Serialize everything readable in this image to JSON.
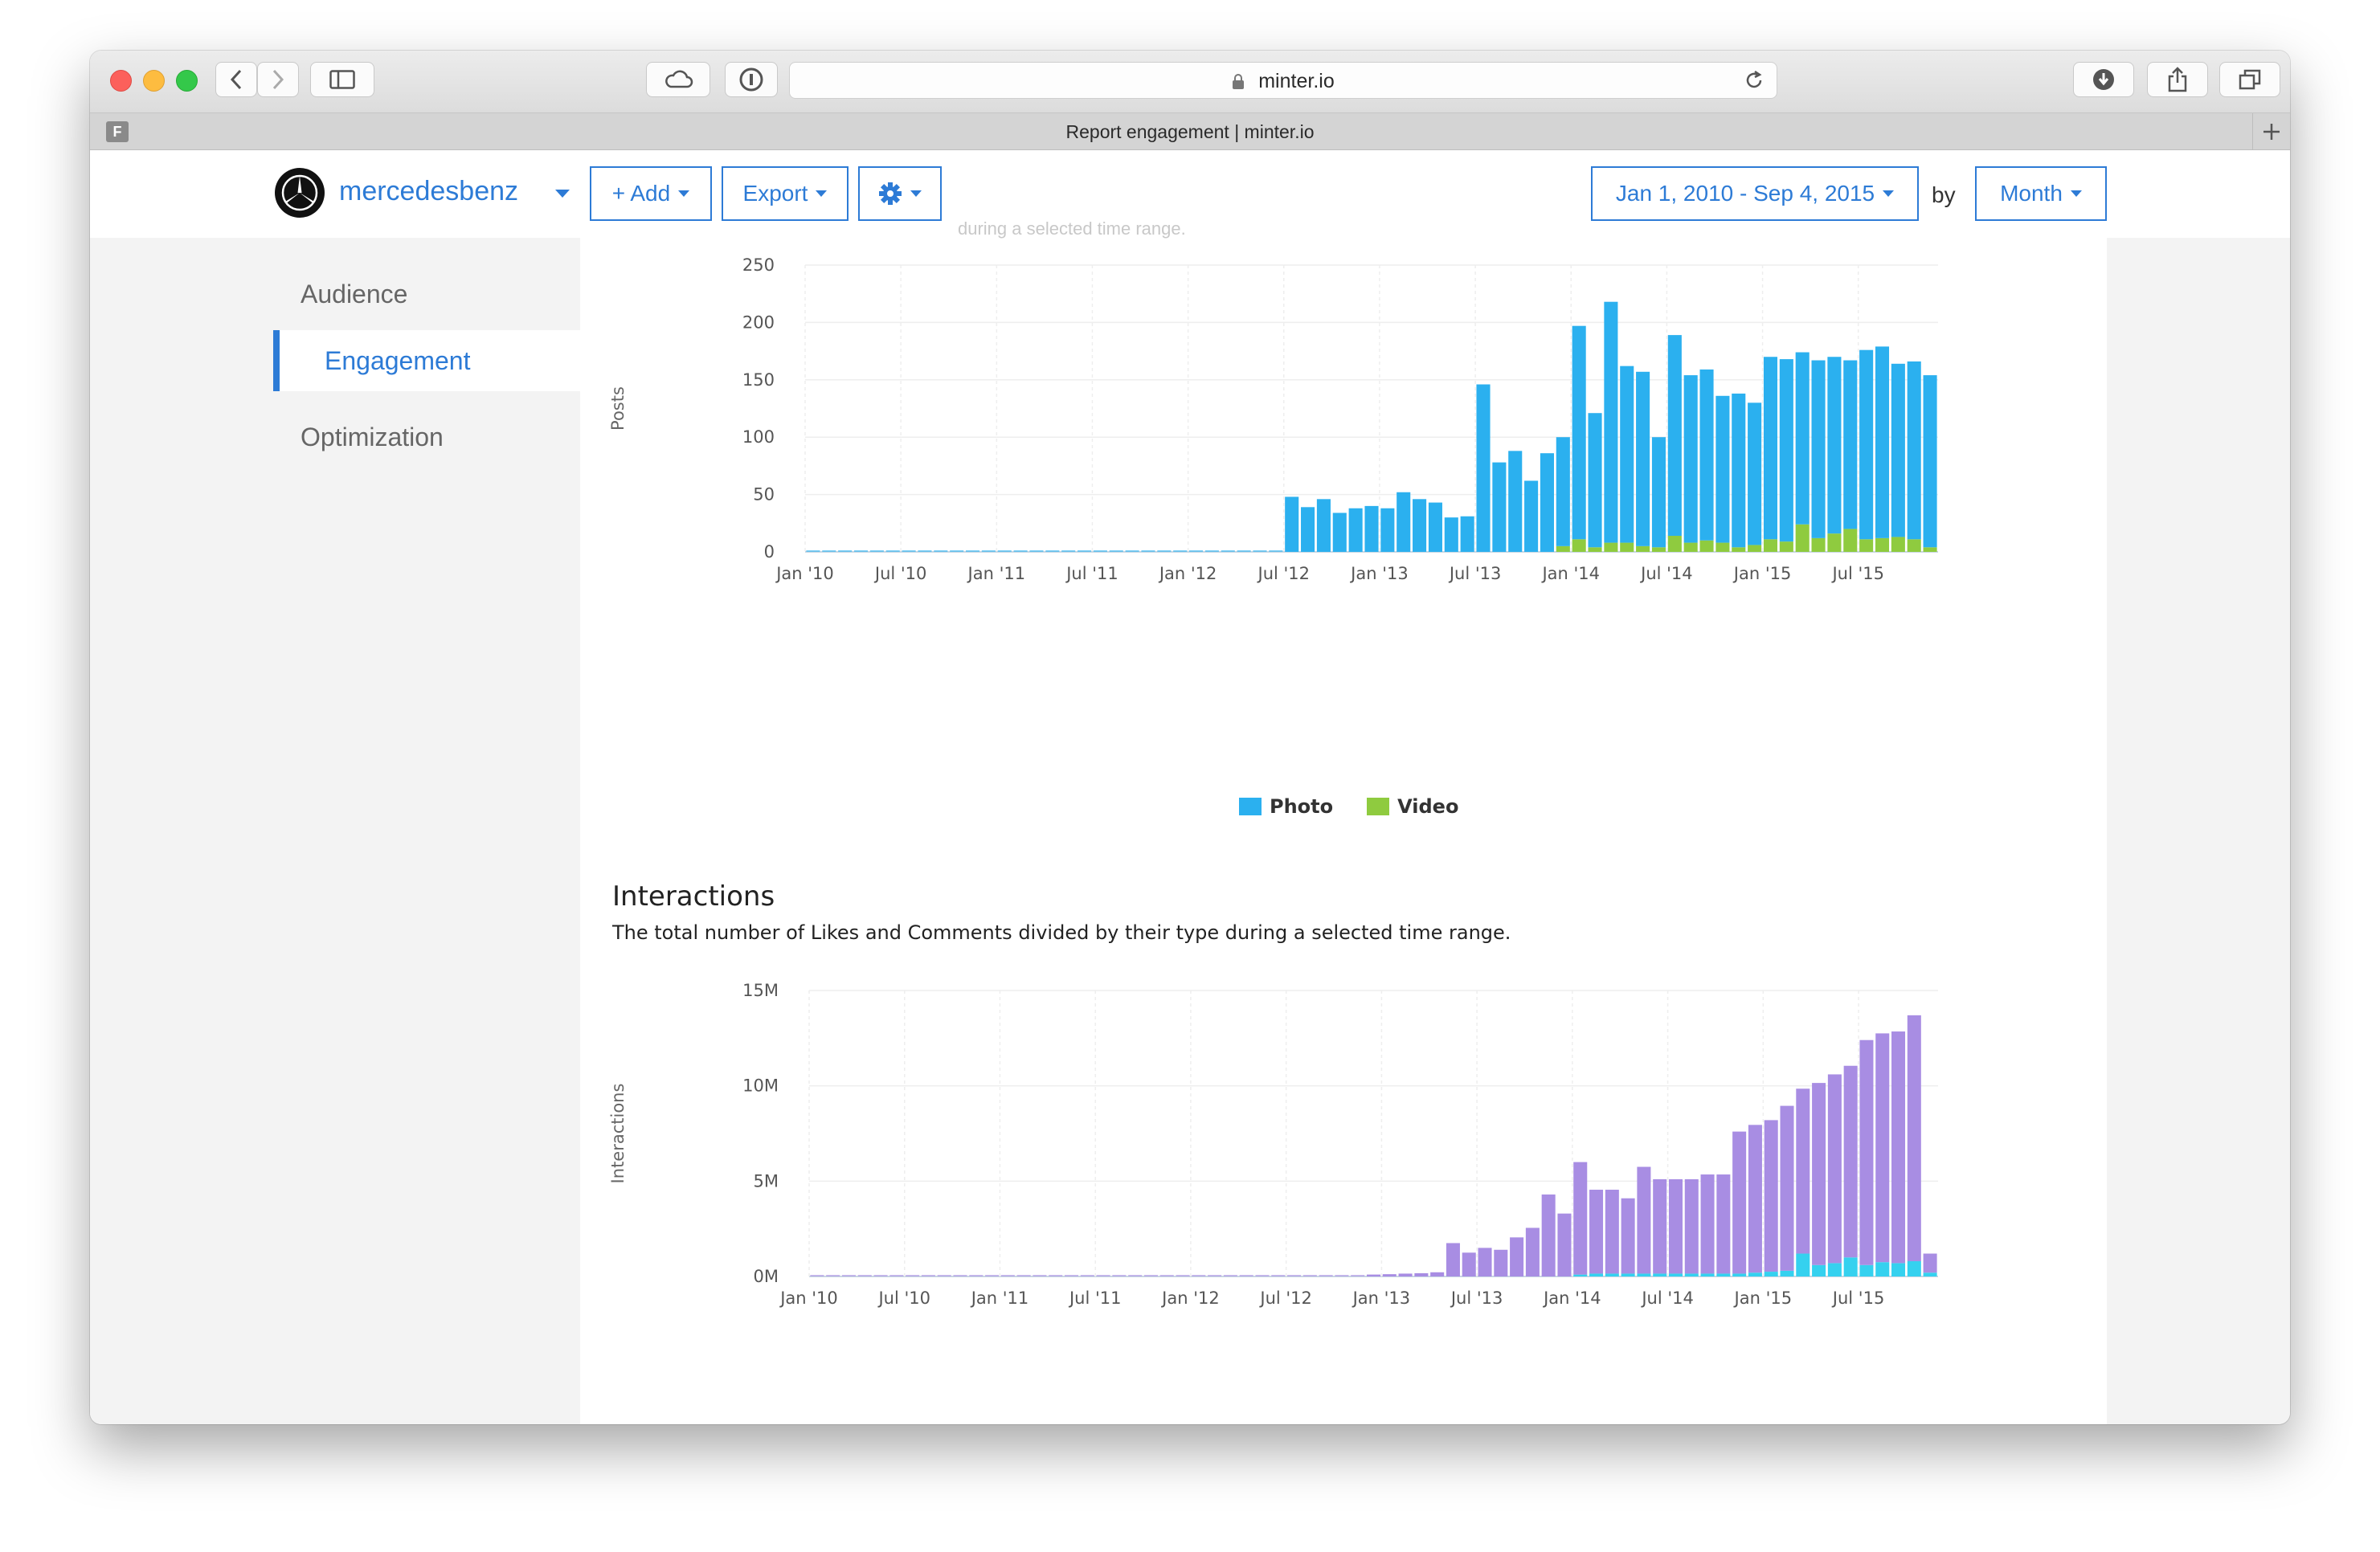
{
  "browser": {
    "url": "minter.io",
    "tab_title": "Report engagement | minter.io",
    "favicon_letter": "F"
  },
  "header": {
    "account_name": "mercedesbenz",
    "add_label": "+ Add",
    "export_label": "Export",
    "date_range": "Jan 1, 2010 - Sep 4, 2015",
    "by_label": "by",
    "granularity": "Month"
  },
  "sidebar": {
    "items": [
      {
        "label": "Audience",
        "active": false
      },
      {
        "label": "Engagement",
        "active": true
      },
      {
        "label": "Optimization",
        "active": false
      }
    ]
  },
  "posts_section": {
    "faded_text": "during a selected time range."
  },
  "interactions_section": {
    "title": "Interactions",
    "description": "The total number of Likes and Comments divided by their type during a selected time range."
  },
  "chart_data": [
    {
      "type": "bar",
      "stacked": true,
      "ylabel": "Posts",
      "ylim": [
        0,
        250
      ],
      "yticks": [
        "0",
        "50",
        "100",
        "150",
        "200",
        "250"
      ],
      "xtick_labels": [
        "Jan '10",
        "Jul '10",
        "Jan '11",
        "Jul '11",
        "Jan '12",
        "Jul '12",
        "Jan '13",
        "Jul '13",
        "Jan '14",
        "Jul '14",
        "Jan '15",
        "Jul '15"
      ],
      "x_start": "2010-01",
      "legend_position": "bottom-center",
      "grid": true,
      "series": [
        {
          "name": "Photo",
          "color": "#2bb0ef",
          "values": [
            0,
            0,
            0,
            0,
            0,
            0,
            0,
            0,
            0,
            0,
            0,
            0,
            0,
            0,
            0,
            0,
            0,
            0,
            0,
            0,
            0,
            0,
            0,
            0,
            0,
            0,
            0,
            0,
            0,
            0,
            48,
            39,
            46,
            34,
            38,
            40,
            38,
            52,
            46,
            43,
            30,
            31,
            146,
            78,
            88,
            62,
            86,
            95,
            186,
            117,
            210,
            154,
            152,
            96,
            175,
            146,
            149,
            128,
            134,
            124,
            159,
            159,
            150,
            155,
            154,
            147,
            165,
            167,
            151,
            155,
            150
          ],
          "video_values": [
            0,
            0,
            0,
            0,
            0,
            0,
            0,
            0,
            0,
            0,
            0,
            0,
            0,
            0,
            0,
            0,
            0,
            0,
            0,
            0,
            0,
            0,
            0,
            0,
            0,
            0,
            0,
            0,
            0,
            0,
            0,
            0,
            0,
            0,
            0,
            0,
            0,
            0,
            0,
            0,
            0,
            0,
            0,
            0,
            0,
            0,
            0,
            5,
            11,
            4,
            8,
            8,
            5,
            4,
            14,
            8,
            10,
            8,
            4,
            6,
            11,
            9,
            24,
            12,
            16,
            20,
            11,
            12,
            13,
            11,
            4
          ]
        },
        {
          "name": "Video",
          "color": "#8fcb3f",
          "values": [
            0,
            0,
            0,
            0,
            0,
            0,
            0,
            0,
            0,
            0,
            0,
            0,
            0,
            0,
            0,
            0,
            0,
            0,
            0,
            0,
            0,
            0,
            0,
            0,
            0,
            0,
            0,
            0,
            0,
            0,
            0,
            0,
            0,
            0,
            0,
            0,
            0,
            0,
            0,
            0,
            0,
            0,
            0,
            0,
            0,
            0,
            0,
            5,
            11,
            4,
            8,
            8,
            5,
            4,
            14,
            8,
            10,
            8,
            4,
            6,
            11,
            9,
            24,
            12,
            16,
            20,
            11,
            12,
            13,
            11,
            4
          ]
        }
      ]
    },
    {
      "type": "bar",
      "stacked": true,
      "ylabel": "Interactions",
      "ylim": [
        0,
        15000000
      ],
      "yticks": [
        "0M",
        "5M",
        "10M",
        "15M"
      ],
      "xtick_labels": [
        "Jan '10",
        "Jul '10",
        "Jan '11",
        "Jul '11",
        "Jan '12",
        "Jul '12",
        "Jan '13",
        "Jul '13",
        "Jan '14",
        "Jul '14",
        "Jan '15",
        "Jul '15"
      ],
      "x_start": "2010-01",
      "grid": true,
      "series": [
        {
          "name": "Likes",
          "color": "#a88de3",
          "values": [
            0,
            0,
            0,
            0,
            0,
            0,
            0,
            0,
            0,
            0,
            0,
            0,
            0,
            0,
            0,
            0,
            0,
            0,
            0,
            0,
            0,
            0,
            0,
            0,
            0,
            0,
            0,
            0,
            0,
            0,
            0,
            0,
            0,
            0,
            0,
            100000,
            120000,
            150000,
            170000,
            220000,
            1750000,
            1250000,
            1500000,
            1400000,
            2050000,
            2550000,
            4300000,
            3300000,
            5900000,
            4400000,
            4400000,
            3950000,
            5600000,
            4950000,
            4950000,
            4950000,
            5200000,
            5200000,
            7450000,
            7750000,
            7950000,
            8650000,
            8650000,
            9550000,
            9900000,
            10050000,
            11800000,
            12000000,
            12150000,
            12900000,
            1000000
          ],
          "note_values": "purple portion above cyan"
        },
        {
          "name": "Comments",
          "color": "#35d1ef",
          "values": [
            0,
            0,
            0,
            0,
            0,
            0,
            0,
            0,
            0,
            0,
            0,
            0,
            0,
            0,
            0,
            0,
            0,
            0,
            0,
            0,
            0,
            0,
            0,
            0,
            0,
            0,
            0,
            0,
            0,
            0,
            0,
            0,
            0,
            0,
            0,
            0,
            0,
            0,
            0,
            0,
            0,
            0,
            0,
            0,
            0,
            0,
            0,
            0,
            100000,
            150000,
            150000,
            150000,
            150000,
            150000,
            150000,
            150000,
            150000,
            150000,
            150000,
            200000,
            250000,
            300000,
            1200000,
            600000,
            700000,
            1000000,
            600000,
            750000,
            700000,
            800000,
            200000
          ]
        }
      ]
    }
  ]
}
